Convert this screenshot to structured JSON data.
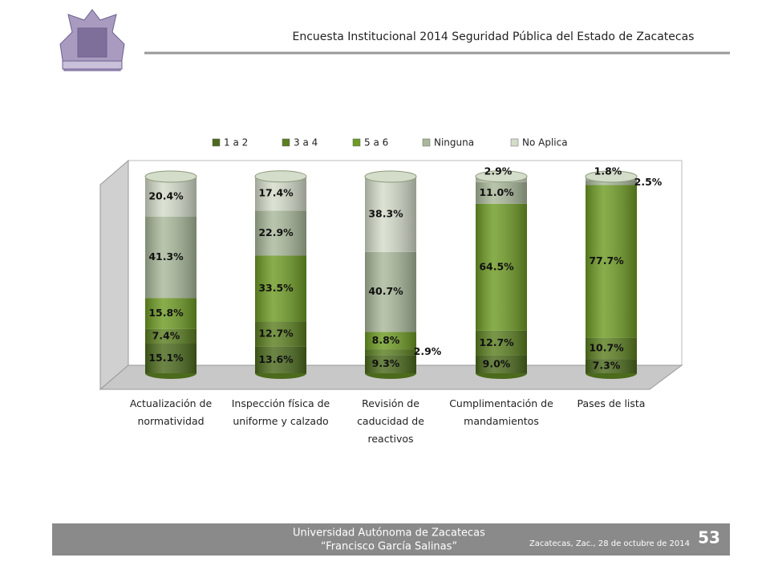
{
  "header": {
    "title": "Encuesta Institucional 2014 Seguridad Pública del Estado de Zacatecas"
  },
  "chart_data": {
    "type": "stacked-cylinder",
    "categories": [
      "Actualización de normatividad",
      "Inspección física de uniforme y calzado",
      "Revisión de caducidad de reactivos",
      "Cumplimentación de mandamientos",
      "Pases de lista"
    ],
    "series": [
      {
        "name": "1 a 2",
        "color": "#4b6a1c",
        "values": [
          15.1,
          13.6,
          9.3,
          9.0,
          7.3
        ],
        "value_labels": [
          "15.1%",
          "13.6%",
          "9.3%",
          "9.0%",
          "7.3%"
        ]
      },
      {
        "name": "3 a 4",
        "color": "#5b7f20",
        "values": [
          7.4,
          12.7,
          2.9,
          12.7,
          10.7
        ],
        "value_labels": [
          "7.4%",
          "12.7%",
          "2.9%",
          "12.7%",
          "10.7%"
        ]
      },
      {
        "name": "5 a 6",
        "color": "#6e9b24",
        "values": [
          15.8,
          33.5,
          8.8,
          64.5,
          77.7
        ],
        "value_labels": [
          "15.8%",
          "33.5%",
          "8.8%",
          "64.5%",
          "77.7%"
        ]
      },
      {
        "name": "Ninguna",
        "color": "#a9b89a",
        "values": [
          41.3,
          22.9,
          40.7,
          11.0,
          2.5
        ],
        "value_labels": [
          "41.3%",
          "22.9%",
          "40.7%",
          "11.0%",
          "2.5%"
        ]
      },
      {
        "name": "No Aplica",
        "color": "#d4dcca",
        "values": [
          20.4,
          17.4,
          38.3,
          2.9,
          1.8
        ],
        "value_labels": [
          "20.4%",
          "17.4%",
          "38.3%",
          "2.9%",
          "1.8%"
        ]
      }
    ],
    "legend": "top"
  },
  "footer": {
    "university": "Universidad Autónoma de Zacatecas",
    "subtitle": "“Francisco García Salinas”",
    "place_date": "Zacatecas, Zac., 28 de octubre de 2014",
    "page": "53"
  }
}
